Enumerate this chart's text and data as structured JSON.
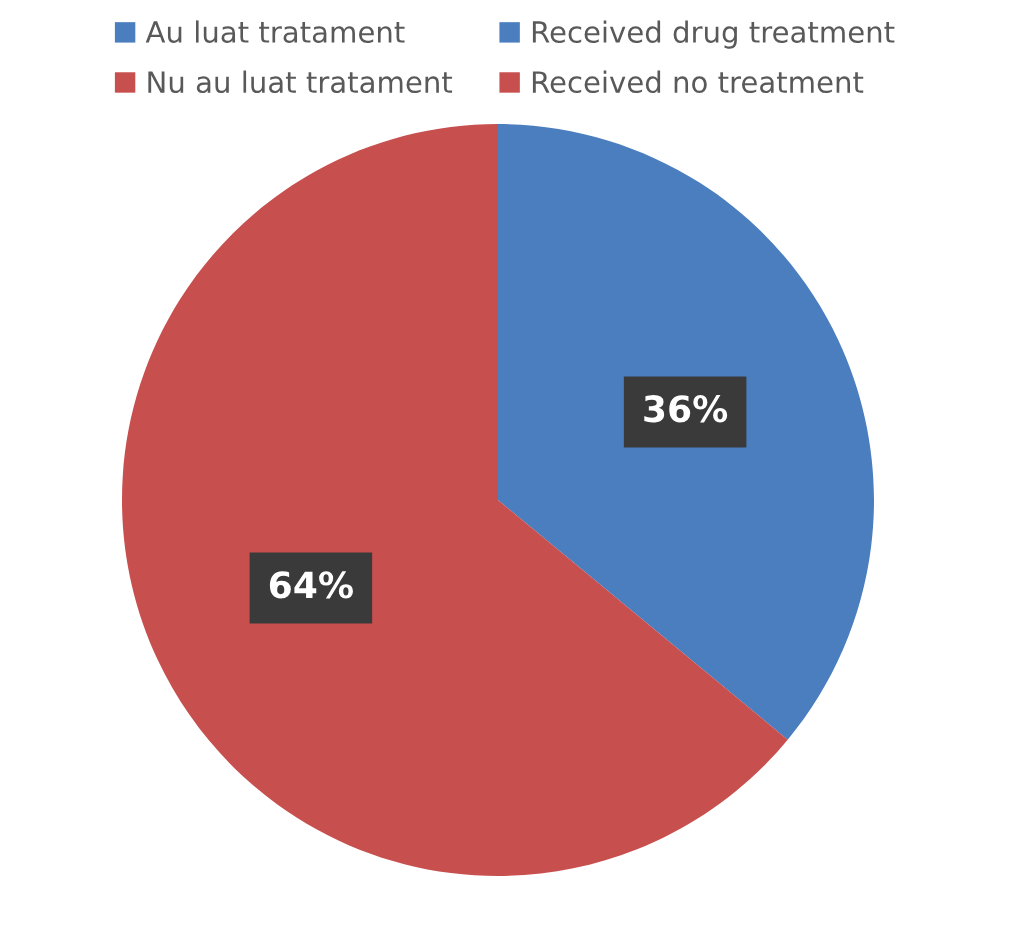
{
  "chart_data": {
    "type": "pie",
    "categories": [
      "Au luat tratament",
      "Nu au luat tratament"
    ],
    "values": [
      36,
      64
    ],
    "colors": [
      "#4a7ebf",
      "#c74f4e"
    ],
    "value_labels": [
      "36%",
      "64%"
    ],
    "annotations": [
      "Received drug treatment",
      "Received no treatment"
    ],
    "legend": "top"
  }
}
